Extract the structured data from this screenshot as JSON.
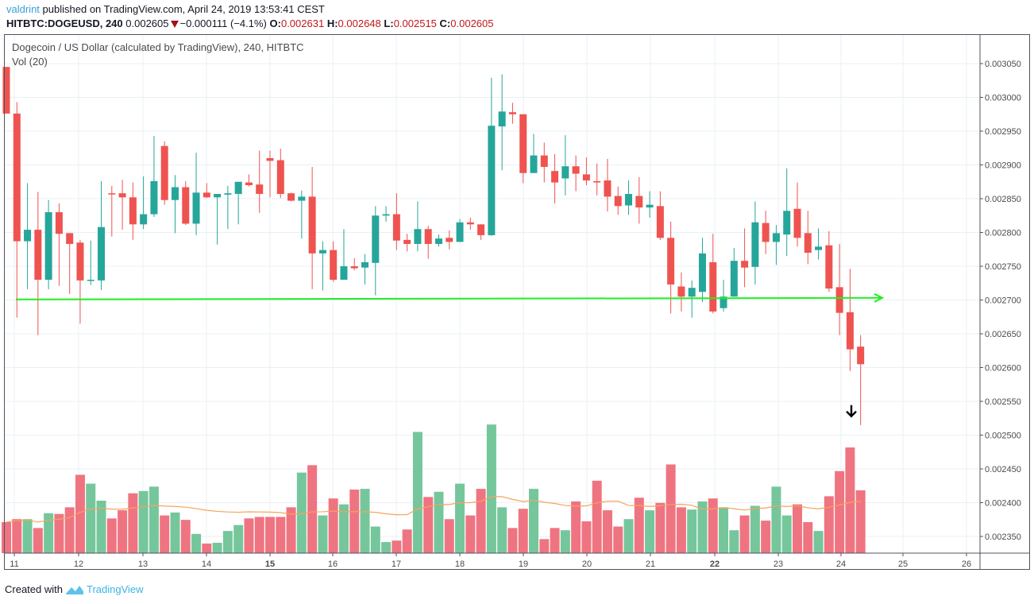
{
  "header": {
    "author": "valdrint",
    "published_text": "published on TradingView.com, April 24, 2019 13:53:41 CEST",
    "symbol": "HITBTC:DOGEUSD, 240",
    "last_price": "0.002605",
    "change": "−0.000111 (−4.1%)",
    "change_direction_icon": "triangle-down-icon",
    "o_label": "O:",
    "o_value": "0.002631",
    "h_label": "H:",
    "h_value": "0.002648",
    "l_label": "L:",
    "l_value": "0.002515",
    "c_label": "C:",
    "c_value": "0.002605"
  },
  "legend": {
    "title": "Dogecoin / US Dollar (calculated by TradingView), 240, HITBTC",
    "volume_study": "Vol (20)"
  },
  "footer": {
    "created_with": "Created with",
    "brand": "TradingView",
    "brand_icon": "tradingview-logo-icon"
  },
  "colors": {
    "up": "#26a69a",
    "down": "#ef5350",
    "volume_up": "#76c69c",
    "volume_down": "#ef7481",
    "volume_ma": "#f7a35c",
    "trendline": "#22ee22",
    "grid": "#e8f0f5",
    "link": "#3a9fd8"
  },
  "chart_data": {
    "type": "candlestick",
    "interval_minutes": 240,
    "y_axis": {
      "position": "right",
      "ylim": [
        0.00232,
        0.00308
      ],
      "ticks": [
        "0.003050",
        "0.003000",
        "0.002950",
        "0.002900",
        "0.002850",
        "0.002800",
        "0.002750",
        "0.002700",
        "0.002650",
        "0.002600",
        "0.002550",
        "0.002500",
        "0.002450",
        "0.002400",
        "0.002350"
      ]
    },
    "x_axis": {
      "ticks": [
        "11",
        "12",
        "13",
        "14",
        "15",
        "16",
        "17",
        "18",
        "19",
        "20",
        "21",
        "22",
        "23",
        "24",
        "25",
        "26"
      ],
      "bold_ticks": [
        "15",
        "22"
      ]
    },
    "grid": true,
    "ohlc_fields": [
      "open",
      "high",
      "low",
      "close"
    ],
    "ohlc": [
      [
        0.003045,
        0.003045,
        0.002976,
        0.002976
      ],
      [
        0.002976,
        0.002993,
        0.002674,
        0.002787
      ],
      [
        0.002787,
        0.002873,
        0.002716,
        0.002804
      ],
      [
        0.002804,
        0.00286,
        0.002648,
        0.00273
      ],
      [
        0.00273,
        0.002848,
        0.002716,
        0.00283
      ],
      [
        0.00283,
        0.002843,
        0.002721,
        0.002798
      ],
      [
        0.002799,
        0.002799,
        0.002709,
        0.002783
      ],
      [
        0.002785,
        0.002789,
        0.002665,
        0.002729
      ],
      [
        0.002729,
        0.002788,
        0.002722,
        0.00273
      ],
      [
        0.002729,
        0.002876,
        0.002715,
        0.002808
      ],
      [
        0.002858,
        0.002869,
        0.002794,
        0.002857
      ],
      [
        0.002858,
        0.002878,
        0.002804,
        0.002852
      ],
      [
        0.002852,
        0.002874,
        0.002789,
        0.002812
      ],
      [
        0.002812,
        0.002883,
        0.002805,
        0.002827
      ],
      [
        0.002827,
        0.002943,
        0.002823,
        0.002876
      ],
      [
        0.002928,
        0.002935,
        0.002841,
        0.002848
      ],
      [
        0.002848,
        0.002885,
        0.002799,
        0.002867
      ],
      [
        0.002867,
        0.002876,
        0.002811,
        0.002813
      ],
      [
        0.002813,
        0.002918,
        0.002796,
        0.002859
      ],
      [
        0.002859,
        0.002873,
        0.002851,
        0.002852
      ],
      [
        0.002852,
        0.002857,
        0.002782,
        0.002857
      ],
      [
        0.002856,
        0.002869,
        0.002805,
        0.002858
      ],
      [
        0.002857,
        0.002875,
        0.002812,
        0.002875
      ],
      [
        0.002874,
        0.002886,
        0.002868,
        0.00287
      ],
      [
        0.002871,
        0.002921,
        0.002829,
        0.002857
      ],
      [
        0.00291,
        0.002921,
        0.002852,
        0.002906
      ],
      [
        0.002907,
        0.002924,
        0.002851,
        0.002857
      ],
      [
        0.002858,
        0.002859,
        0.002846,
        0.002847
      ],
      [
        0.002847,
        0.002862,
        0.002791,
        0.002853
      ],
      [
        0.002853,
        0.002897,
        0.002716,
        0.002769
      ],
      [
        0.002769,
        0.002787,
        0.002714,
        0.002774
      ],
      [
        0.002774,
        0.002787,
        0.002727,
        0.00273
      ],
      [
        0.00273,
        0.002805,
        0.00273,
        0.00275
      ],
      [
        0.00275,
        0.002762,
        0.002744,
        0.002747
      ],
      [
        0.002748,
        0.002768,
        0.002723,
        0.002756
      ],
      [
        0.002755,
        0.002839,
        0.002707,
        0.002825
      ],
      [
        0.002825,
        0.002839,
        0.002816,
        0.002827
      ],
      [
        0.002827,
        0.002858,
        0.002774,
        0.002788
      ],
      [
        0.002789,
        0.002798,
        0.002772,
        0.002783
      ],
      [
        0.002783,
        0.002846,
        0.002772,
        0.002805
      ],
      [
        0.002805,
        0.00281,
        0.002761,
        0.002783
      ],
      [
        0.002783,
        0.002797,
        0.002779,
        0.002791
      ],
      [
        0.002792,
        0.002803,
        0.002775,
        0.002786
      ],
      [
        0.002786,
        0.00282,
        0.002786,
        0.002815
      ],
      [
        0.002815,
        0.002822,
        0.002804,
        0.002812
      ],
      [
        0.002812,
        0.002812,
        0.002789,
        0.002796
      ],
      [
        0.002796,
        0.003029,
        0.002795,
        0.002958
      ],
      [
        0.002957,
        0.003034,
        0.002892,
        0.002979
      ],
      [
        0.002978,
        0.002992,
        0.002961,
        0.002975
      ],
      [
        0.002975,
        0.002975,
        0.002873,
        0.002888
      ],
      [
        0.002888,
        0.002946,
        0.002888,
        0.002914
      ],
      [
        0.002914,
        0.002933,
        0.002874,
        0.002897
      ],
      [
        0.002891,
        0.002916,
        0.002843,
        0.002874
      ],
      [
        0.00288,
        0.002944,
        0.002855,
        0.002898
      ],
      [
        0.002898,
        0.002914,
        0.002861,
        0.002887
      ],
      [
        0.002886,
        0.002911,
        0.00287,
        0.002877
      ],
      [
        0.002876,
        0.002902,
        0.002855,
        0.002874
      ],
      [
        0.002877,
        0.002909,
        0.002831,
        0.002853
      ],
      [
        0.002854,
        0.002868,
        0.002826,
        0.002839
      ],
      [
        0.00284,
        0.002877,
        0.002826,
        0.002857
      ],
      [
        0.002854,
        0.002882,
        0.002813,
        0.002837
      ],
      [
        0.002837,
        0.002861,
        0.002822,
        0.002841
      ],
      [
        0.002839,
        0.002861,
        0.002789,
        0.002792
      ],
      [
        0.002792,
        0.002816,
        0.00268,
        0.002723
      ],
      [
        0.00272,
        0.002741,
        0.002683,
        0.002705
      ],
      [
        0.002705,
        0.002729,
        0.002674,
        0.002718
      ],
      [
        0.002712,
        0.002792,
        0.002697,
        0.002769
      ],
      [
        0.002756,
        0.002798,
        0.00268,
        0.002683
      ],
      [
        0.002688,
        0.00273,
        0.002683,
        0.002705
      ],
      [
        0.002705,
        0.002777,
        0.002705,
        0.002758
      ],
      [
        0.002758,
        0.002806,
        0.002719,
        0.002748
      ],
      [
        0.002749,
        0.002846,
        0.002723,
        0.002815
      ],
      [
        0.002814,
        0.002832,
        0.002768,
        0.002786
      ],
      [
        0.002786,
        0.002811,
        0.002752,
        0.002799
      ],
      [
        0.002797,
        0.002895,
        0.002765,
        0.002832
      ],
      [
        0.002835,
        0.002874,
        0.002779,
        0.002792
      ],
      [
        0.002799,
        0.002832,
        0.002753,
        0.00277
      ],
      [
        0.002774,
        0.002806,
        0.00276,
        0.002779
      ],
      [
        0.002781,
        0.002802,
        0.002712,
        0.002717
      ],
      [
        0.002719,
        0.002783,
        0.002648,
        0.002681
      ],
      [
        0.002682,
        0.002746,
        0.002595,
        0.002627
      ],
      [
        0.002631,
        0.002648,
        0.002515,
        0.002605
      ]
    ],
    "volume_relative": [
      42,
      46,
      46,
      34,
      54,
      53,
      62,
      106,
      94,
      71,
      47,
      58,
      81,
      84,
      90,
      51,
      55,
      45,
      26,
      13,
      14,
      30,
      38,
      47,
      49,
      49,
      49,
      62,
      109,
      119,
      51,
      74,
      66,
      86,
      87,
      36,
      15,
      17,
      32,
      164,
      76,
      83,
      46,
      94,
      51,
      87,
      174,
      62,
      34,
      60,
      87,
      19,
      34,
      31,
      70,
      43,
      98,
      58,
      36,
      46,
      75,
      58,
      68,
      120,
      62,
      59,
      70,
      74,
      62,
      31,
      51,
      64,
      44,
      90,
      51,
      66,
      42,
      30,
      77,
      111,
      143,
      85
    ],
    "volume_ma_period": 20,
    "annotations": [
      {
        "type": "horizontal-arrow-line",
        "price": 0.002702,
        "color": "#22ee22"
      },
      {
        "type": "down-arrow",
        "price": 0.002535,
        "color": "#000000"
      }
    ]
  }
}
